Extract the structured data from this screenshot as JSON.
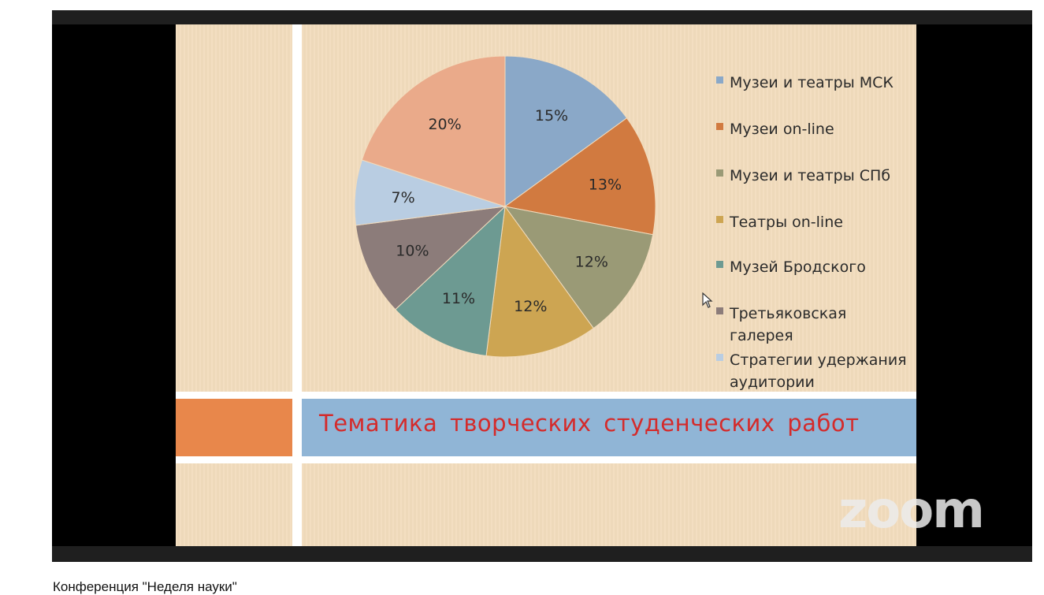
{
  "slide": {
    "title": "Тематика творческих студенческих работ"
  },
  "chart_data": {
    "type": "pie",
    "title": "",
    "slices": [
      {
        "label": "Музеи и театры МСК",
        "value": 15,
        "display": "15%",
        "color": "#8aa8c8"
      },
      {
        "label": "Музеи on-line",
        "value": 13,
        "display": "13%",
        "color": "#d17a40"
      },
      {
        "label": "Музеи и театры СПб",
        "value": 12,
        "display": "12%",
        "color": "#9a9a76"
      },
      {
        "label": "Театры on-line",
        "value": 12,
        "display": "12%",
        "color": "#cda552"
      },
      {
        "label": "Музей Бродского",
        "value": 11,
        "display": "11%",
        "color": "#6d9a92"
      },
      {
        "label": "Третьяковская галерея",
        "value": 10,
        "display": "10%",
        "color": "#8c7c7a"
      },
      {
        "label": "Стратегии удержания аудитории",
        "value": 7,
        "display": "7%",
        "color": "#b9cde2"
      },
      {
        "label": "",
        "value": 20,
        "display": "20%",
        "color": "#eaaa8a"
      }
    ],
    "legend_position": "right"
  },
  "legend": [
    {
      "label": "Музеи и театры МСК",
      "color": "#8aa8c8"
    },
    {
      "label": "Музеи on-line",
      "color": "#d17a40"
    },
    {
      "label": "Музеи и театры СПб",
      "color": "#9a9a76"
    },
    {
      "label": "Театры on-line",
      "color": "#cda552"
    },
    {
      "label": "Музей Бродского",
      "color": "#6d9a92"
    },
    {
      "label": "Третьяковская галерея",
      "color": "#8c7c7a"
    },
    {
      "label": "Стратегии удержания аудитории",
      "color": "#b9cde2"
    }
  ],
  "watermark": "zoom",
  "video": {
    "caption": "Конференция \"Неделя науки\""
  }
}
